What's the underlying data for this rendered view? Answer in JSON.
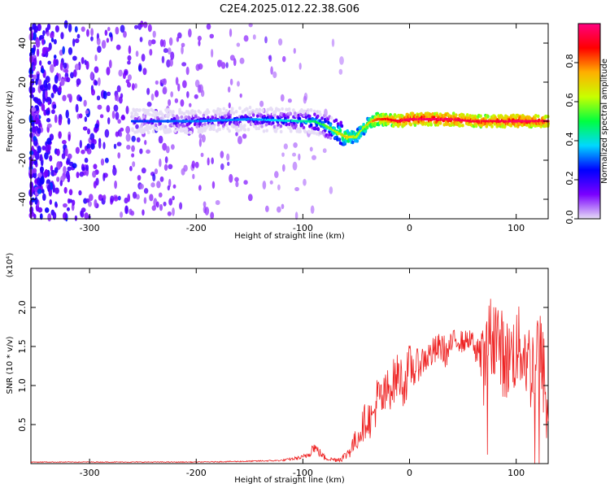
{
  "title": "C2E4.2025.012.22.38.G06",
  "chart_data": [
    {
      "type": "heatmap",
      "xlabel": "Height of straight line (km)",
      "ylabel": "Frequency (Hz)",
      "xlim": [
        -355,
        130
      ],
      "ylim": [
        -50,
        50
      ],
      "x_ticks": [
        -300,
        -200,
        -100,
        0,
        100
      ],
      "y_ticks": [
        -40,
        -20,
        0,
        20,
        40
      ],
      "colorbar": {
        "label": "Normalized spectral amplitude",
        "range": [
          0,
          1
        ],
        "ticks": [
          "0.0",
          "0.2",
          "0.4",
          "0.6",
          "0.8"
        ],
        "colors": [
          "#e6ddf6",
          "#7a00ff",
          "#0000ff",
          "#00d8ff",
          "#00ff40",
          "#c8ff00",
          "#ffb000",
          "#ff0000",
          "#ff0080"
        ]
      },
      "ridge": {
        "x": [
          -250,
          -200,
          -150,
          -100,
          -90,
          -80,
          -70,
          -60,
          -50,
          -45,
          -40,
          -35,
          -30,
          -20,
          -10,
          0,
          20,
          40,
          60,
          80,
          100,
          130
        ],
        "frequency": [
          0,
          0,
          1,
          0,
          0,
          -2,
          -5,
          -8,
          -8,
          -5,
          -2,
          0,
          1,
          1,
          0,
          1,
          1,
          1,
          0,
          0,
          0,
          0
        ],
        "amplitude": [
          0.25,
          0.3,
          0.3,
          0.4,
          0.45,
          0.5,
          0.6,
          0.7,
          0.6,
          0.6,
          0.65,
          0.75,
          0.8,
          0.85,
          0.9,
          0.95,
          0.95,
          0.95,
          0.9,
          0.9,
          0.95,
          0.9
        ]
      }
    },
    {
      "type": "line",
      "xlabel": "Height of straight line (km)",
      "ylabel": "SNR (10 * v/v)",
      "y_multiplier": "(x10⁴)",
      "xlim": [
        -355,
        130
      ],
      "ylim": [
        0,
        2.5
      ],
      "x_ticks": [
        -300,
        -200,
        -100,
        0,
        100
      ],
      "y_ticks": [
        0.5,
        1.0,
        1.5,
        2.0
      ],
      "color": "#ee2222",
      "series": [
        {
          "x": [
            -355,
            -300,
            -250,
            -200,
            -150,
            -120,
            -100,
            -95,
            -90,
            -85,
            -80,
            -75,
            -70,
            -65,
            -60,
            -55,
            -50,
            -45,
            -40,
            -35,
            -30,
            -25,
            -20,
            -15,
            -10,
            -5,
            0,
            5,
            10,
            15,
            20,
            25,
            30,
            35,
            40,
            45,
            50,
            55,
            60,
            65,
            70,
            75,
            80,
            85,
            90,
            95,
            100,
            105,
            110,
            115,
            120,
            125,
            130
          ],
          "values": [
            0.02,
            0.02,
            0.02,
            0.02,
            0.03,
            0.04,
            0.08,
            0.12,
            0.22,
            0.15,
            0.08,
            0.06,
            0.05,
            0.06,
            0.1,
            0.2,
            0.3,
            0.45,
            0.6,
            0.55,
            0.85,
            0.8,
            0.95,
            1.05,
            1.15,
            1.0,
            1.25,
            1.2,
            1.3,
            1.35,
            1.4,
            1.45,
            1.5,
            1.4,
            1.55,
            1.6,
            1.55,
            1.6,
            1.55,
            1.45,
            1.2,
            1.6,
            1.7,
            1.5,
            1.3,
            1.4,
            1.45,
            1.5,
            1.35,
            1.2,
            1.5,
            1.25,
            0.5
          ],
          "noise": [
            0.005,
            0.005,
            0.005,
            0.005,
            0.008,
            0.01,
            0.03,
            0.06,
            0.08,
            0.06,
            0.04,
            0.03,
            0.03,
            0.04,
            0.06,
            0.12,
            0.15,
            0.2,
            0.25,
            0.25,
            0.3,
            0.3,
            0.3,
            0.3,
            0.3,
            0.3,
            0.3,
            0.25,
            0.2,
            0.2,
            0.2,
            0.2,
            0.2,
            0.2,
            0.15,
            0.15,
            0.15,
            0.12,
            0.15,
            0.35,
            0.5,
            0.55,
            0.55,
            0.55,
            0.55,
            0.5,
            0.55,
            0.55,
            0.55,
            0.6,
            0.6,
            0.6,
            0.5
          ]
        }
      ]
    }
  ]
}
